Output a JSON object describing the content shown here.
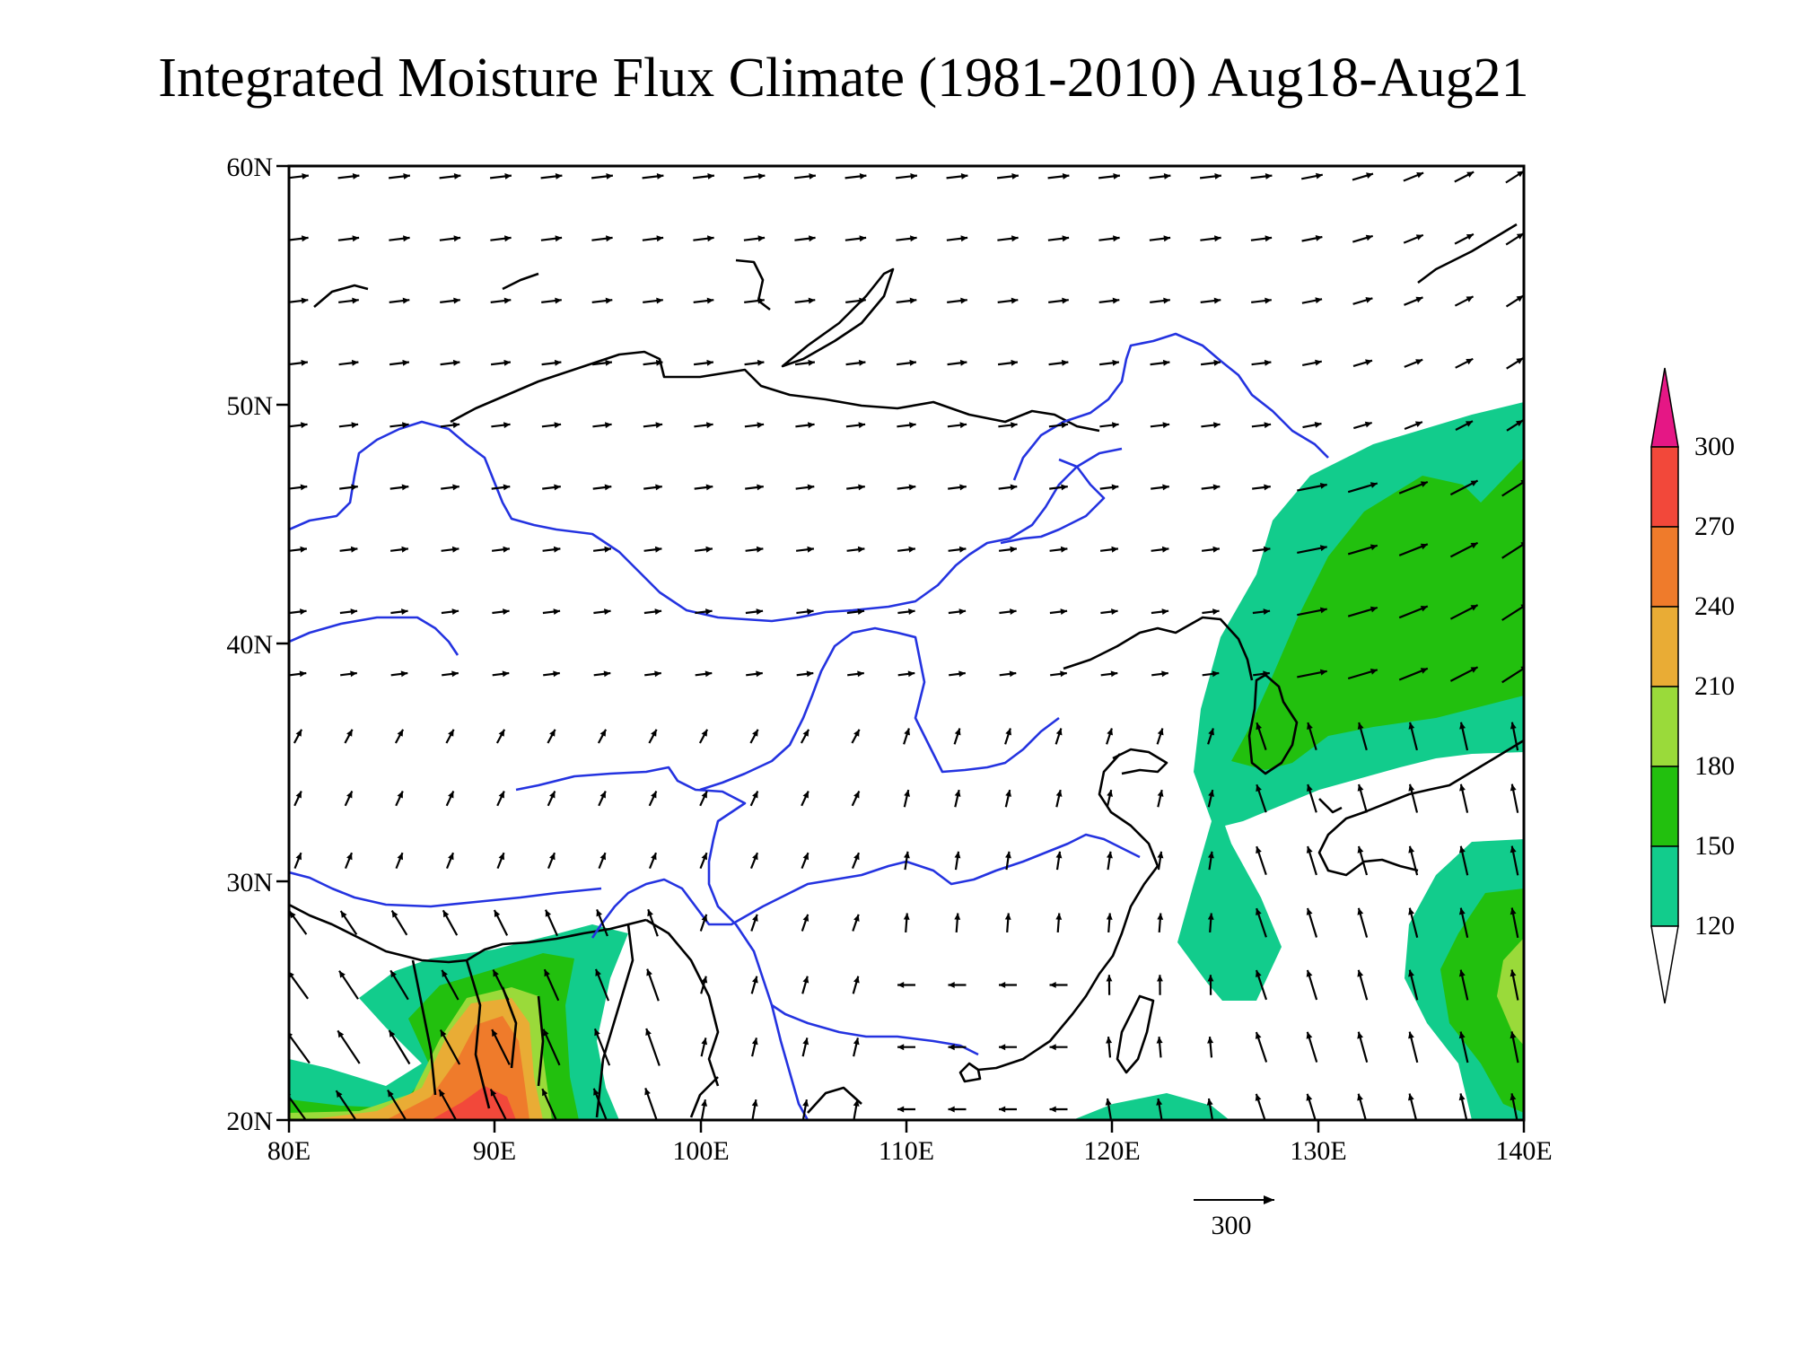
{
  "title": "Integrated Moisture Flux Climate (1981-2010) Aug18-Aug21",
  "map": {
    "lon_range": [
      80,
      140
    ],
    "lat_range": [
      20,
      60
    ],
    "x_ticks": [
      "80E",
      "90E",
      "100E",
      "110E",
      "120E",
      "130E",
      "140E"
    ],
    "y_ticks": [
      "20N",
      "30N",
      "40N",
      "50N",
      "60N"
    ],
    "coastline_color": "#000000",
    "river_color": "#2433e0"
  },
  "colorbar": {
    "labels": [
      "120",
      "150",
      "180",
      "210",
      "240",
      "270",
      "300"
    ],
    "colors": [
      "#ffffff",
      "#12cc8c",
      "#22c00e",
      "#9ada3a",
      "#e9ac35",
      "#ef7b2b",
      "#f2483a",
      "#e51785"
    ]
  },
  "reference_vector": {
    "label": "300"
  }
}
